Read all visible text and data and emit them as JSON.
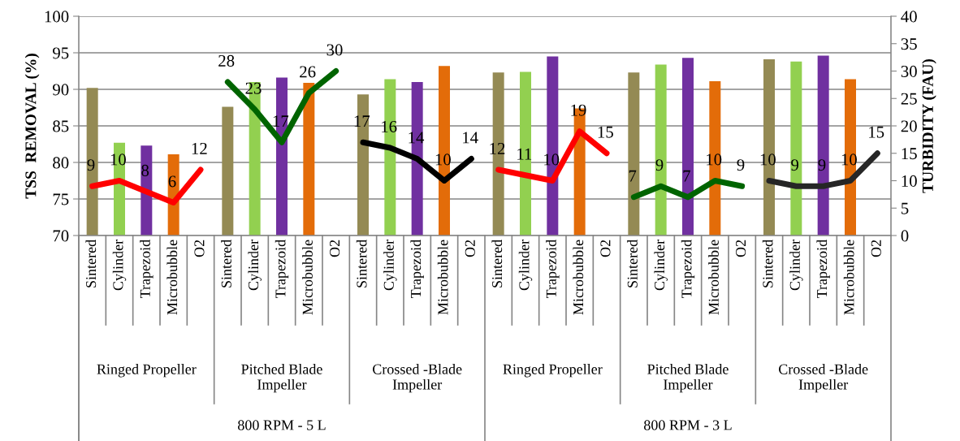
{
  "chart_data": {
    "type": "bar",
    "ylabel": "TSS  REMOVAL (%)",
    "y2label": "TURBIDITY (FAU)",
    "categories": [
      "Sintered",
      "Cylinder",
      "Trapezoid",
      "Microbubble",
      "O2",
      "Sintered",
      "Cylinder",
      "Trapezoid",
      "Microbubble",
      "O2",
      "Sintered",
      "Cylinder",
      "Trapezoid",
      "Microbubble",
      "O2",
      "Sintered",
      "Cylinder",
      "Trapezoid",
      "Microbubble",
      "O2",
      "Sintered",
      "Cylinder",
      "Trapezoid",
      "Microbubble",
      "O2",
      "Sintered",
      "Cylinder",
      "Trapezoid",
      "Microbubble",
      "O2"
    ],
    "series": [
      {
        "values": [
          90.2,
          82.7,
          82.3,
          81.1,
          null,
          87.6,
          91.0,
          91.6,
          90.9,
          null,
          89.3,
          91.4,
          91.0,
          93.2,
          null,
          92.3,
          92.4,
          94.5,
          87.4,
          null,
          92.3,
          93.4,
          94.3,
          91.1,
          null,
          94.1,
          93.8,
          94.6,
          91.4,
          null
        ],
        "colors": [
          "#948a54",
          "#92d050",
          "#7030a0",
          "#e36c09",
          "#ffffff",
          "#948a54",
          "#92d050",
          "#7030a0",
          "#e36c09",
          "#ffffff",
          "#948a54",
          "#92d050",
          "#7030a0",
          "#e36c09",
          "#ffffff",
          "#948a54",
          "#92d050",
          "#7030a0",
          "#e36c09",
          "#ffffff",
          "#948a54",
          "#92d050",
          "#7030a0",
          "#e36c09",
          "#ffffff",
          "#948a54",
          "#92d050",
          "#7030a0",
          "#e36c09",
          "#ffffff"
        ]
      },
      {
        "type": "line",
        "axis": "y2",
        "color": "#ff0000",
        "values": [
          9,
          10,
          8,
          6,
          12,
          null,
          null,
          null,
          null,
          null,
          null,
          null,
          null,
          null,
          null,
          null,
          null,
          null,
          null,
          null,
          null,
          null,
          null,
          null,
          null,
          null,
          null,
          null,
          null,
          null
        ],
        "value_labels": [
          "9",
          "10",
          "8",
          "6",
          "12",
          null,
          null,
          null,
          null,
          null,
          null,
          null,
          null,
          null,
          null,
          null,
          null,
          null,
          null,
          null,
          null,
          null,
          null,
          null,
          null,
          null,
          null,
          null,
          null,
          null
        ]
      },
      {
        "type": "line",
        "axis": "y2",
        "color": "#006400",
        "values": [
          null,
          null,
          null,
          null,
          null,
          28,
          23,
          17,
          26,
          30,
          null,
          null,
          null,
          null,
          null,
          null,
          null,
          null,
          null,
          null,
          null,
          null,
          null,
          null,
          null,
          null,
          null,
          null,
          null,
          null
        ],
        "value_labels": [
          null,
          null,
          null,
          null,
          null,
          "28",
          "23",
          "17",
          "26",
          "30",
          null,
          null,
          null,
          null,
          null,
          null,
          null,
          null,
          null,
          null,
          null,
          null,
          null,
          null,
          null,
          null,
          null,
          null,
          null,
          null
        ]
      },
      {
        "type": "line",
        "axis": "y2",
        "color": "#000000",
        "values": [
          null,
          null,
          null,
          null,
          null,
          null,
          null,
          null,
          null,
          null,
          17,
          16,
          14,
          10,
          14,
          null,
          null,
          null,
          null,
          null,
          null,
          null,
          null,
          null,
          null,
          null,
          null,
          null,
          null,
          null
        ],
        "value_labels": [
          null,
          null,
          null,
          null,
          null,
          null,
          null,
          null,
          null,
          null,
          "17",
          "16",
          "14",
          "10",
          "14",
          null,
          null,
          null,
          null,
          null,
          null,
          null,
          null,
          null,
          null,
          null,
          null,
          null,
          null,
          null
        ]
      },
      {
        "type": "line",
        "axis": "y2",
        "color": "#ff0000",
        "values": [
          null,
          null,
          null,
          null,
          null,
          null,
          null,
          null,
          null,
          null,
          null,
          null,
          null,
          null,
          null,
          12,
          11,
          10,
          19,
          15,
          null,
          null,
          null,
          null,
          null,
          null,
          null,
          null,
          null,
          null
        ],
        "value_labels": [
          null,
          null,
          null,
          null,
          null,
          null,
          null,
          null,
          null,
          null,
          null,
          null,
          null,
          null,
          null,
          "12",
          "11",
          "10",
          "19",
          "15",
          null,
          null,
          null,
          null,
          null,
          null,
          null,
          null,
          null,
          null
        ]
      },
      {
        "type": "line",
        "axis": "y2",
        "color": "#006400",
        "values": [
          null,
          null,
          null,
          null,
          null,
          null,
          null,
          null,
          null,
          null,
          null,
          null,
          null,
          null,
          null,
          null,
          null,
          null,
          null,
          null,
          7,
          9,
          7,
          10,
          9,
          null,
          null,
          null,
          null,
          null
        ],
        "value_labels": [
          null,
          null,
          null,
          null,
          null,
          null,
          null,
          null,
          null,
          null,
          null,
          null,
          null,
          null,
          null,
          null,
          null,
          null,
          null,
          null,
          "7",
          "9",
          "7",
          "10",
          "9",
          null,
          null,
          null,
          null,
          null
        ]
      },
      {
        "type": "line",
        "axis": "y2",
        "color": "#262626",
        "values": [
          null,
          null,
          null,
          null,
          null,
          null,
          null,
          null,
          null,
          null,
          null,
          null,
          null,
          null,
          null,
          null,
          null,
          null,
          null,
          null,
          null,
          null,
          null,
          null,
          null,
          10,
          9,
          9,
          10,
          15
        ],
        "value_labels": [
          null,
          null,
          null,
          null,
          null,
          null,
          null,
          null,
          null,
          null,
          null,
          null,
          null,
          null,
          null,
          null,
          null,
          null,
          null,
          null,
          null,
          null,
          null,
          null,
          null,
          "10",
          "9",
          "9",
          "10",
          "15"
        ]
      }
    ],
    "ylim": [
      70,
      100
    ],
    "yticks": [
      70,
      75,
      80,
      85,
      90,
      95,
      100
    ],
    "y2lim": [
      0,
      40
    ],
    "y2ticks": [
      0,
      5,
      10,
      15,
      20,
      25,
      30,
      35,
      40
    ],
    "grid": "y",
    "line_style": "solid",
    "marker": "none",
    "annotations": [
      "Ringed Propeller",
      "Pitched Blade\nImpeller",
      "Crossed -Blade\nImpeller",
      "Ringed Propeller",
      "Pitched Blade\nImpeller",
      "Crossed -Blade\nImpeller",
      "800 RPM - 5 L",
      "800 RPM - 3 L"
    ]
  }
}
